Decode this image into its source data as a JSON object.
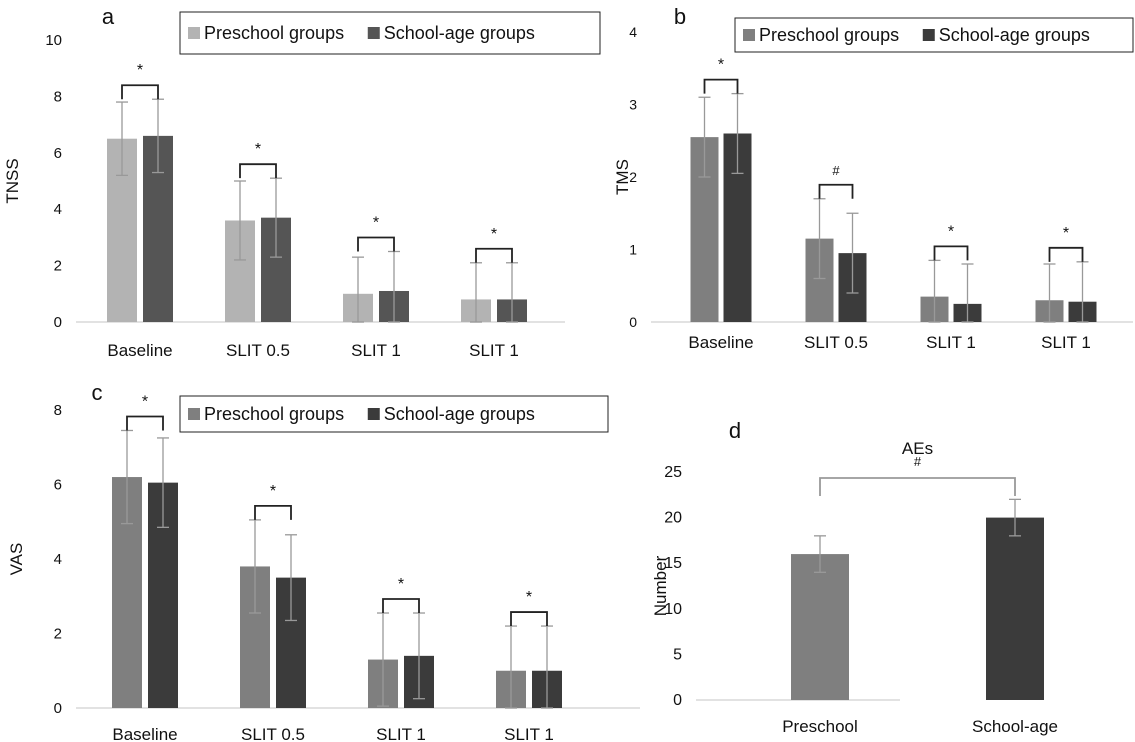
{
  "chart_data": [
    {
      "panel_label": "a",
      "type": "bar",
      "ylabel": "TNSS",
      "ylim": [
        0,
        10
      ],
      "yticks": [
        0,
        2,
        4,
        6,
        8,
        10
      ],
      "categories": [
        "Baseline",
        "SLIT 0.5",
        "SLIT 1",
        "SLIT 1"
      ],
      "series": [
        {
          "name": "Preschool groups",
          "color": "#b3b3b3",
          "values": [
            6.5,
            3.6,
            1.0,
            0.8
          ],
          "errors": [
            1.3,
            1.4,
            1.3,
            1.3
          ]
        },
        {
          "name": "School-age groups",
          "color": "#555555",
          "values": [
            6.6,
            3.7,
            1.1,
            0.8
          ],
          "errors": [
            1.3,
            1.4,
            1.4,
            1.3
          ]
        }
      ],
      "significance": [
        "*",
        "*",
        "*",
        "*"
      ],
      "legend_position": "top"
    },
    {
      "panel_label": "b",
      "type": "bar",
      "ylabel": "TMS",
      "ylim": [
        0,
        4
      ],
      "yticks": [
        0,
        1,
        2,
        3,
        4
      ],
      "categories": [
        "Baseline",
        "SLIT 0.5",
        "SLIT 1",
        "SLIT 1"
      ],
      "series": [
        {
          "name": "Preschool groups",
          "color": "#7f7f7f",
          "values": [
            2.55,
            1.15,
            0.35,
            0.3
          ],
          "errors": [
            0.55,
            0.55,
            0.5,
            0.5
          ]
        },
        {
          "name": "School-age groups",
          "color": "#3b3b3b",
          "values": [
            2.6,
            0.95,
            0.25,
            0.28
          ],
          "errors": [
            0.55,
            0.55,
            0.55,
            0.55
          ]
        }
      ],
      "significance": [
        "*",
        "#",
        "*",
        "*"
      ],
      "legend_position": "top"
    },
    {
      "panel_label": "c",
      "type": "bar",
      "ylabel": "VAS",
      "ylim": [
        0,
        8
      ],
      "yticks": [
        0,
        2,
        4,
        6,
        8
      ],
      "categories": [
        "Baseline",
        "SLIT 0.5",
        "SLIT 1",
        "SLIT 1"
      ],
      "series": [
        {
          "name": "Preschool groups",
          "color": "#7f7f7f",
          "values": [
            6.2,
            3.8,
            1.3,
            1.0
          ],
          "errors": [
            1.25,
            1.25,
            1.25,
            1.2
          ]
        },
        {
          "name": "School-age groups",
          "color": "#3b3b3b",
          "values": [
            6.05,
            3.5,
            1.4,
            1.0
          ],
          "errors": [
            1.2,
            1.15,
            1.15,
            1.2
          ]
        }
      ],
      "significance": [
        "*",
        "*",
        "*",
        "*"
      ],
      "legend_position": "top"
    },
    {
      "panel_label": "d",
      "type": "bar",
      "title": "AEs",
      "ylabel": "Number",
      "ylim": [
        0,
        25
      ],
      "yticks": [
        0,
        5,
        10,
        15,
        20,
        25
      ],
      "categories": [
        "Preschool",
        "School-age"
      ],
      "series": [
        {
          "color": "#7f7f7f",
          "values": [
            16,
            null
          ],
          "errors": [
            2,
            null
          ]
        },
        {
          "color": "#3b3b3b",
          "values": [
            null,
            20
          ],
          "errors": [
            null,
            2
          ]
        }
      ],
      "significance": [
        "#"
      ]
    }
  ]
}
